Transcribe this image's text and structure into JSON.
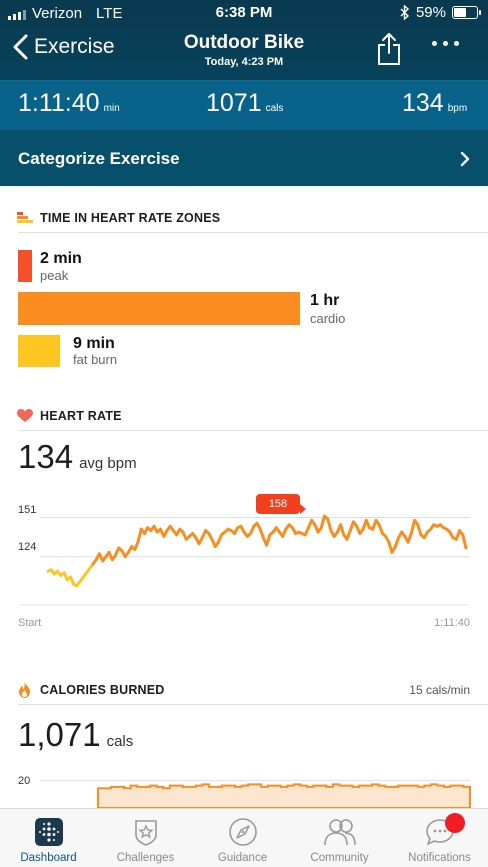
{
  "status_bar": {
    "carrier": "Verizon",
    "network": "LTE",
    "time": "6:38 PM",
    "battery": "59%",
    "battery_level": 0.59
  },
  "nav": {
    "back_label": "Exercise",
    "title": "Outdoor Bike",
    "subtitle": "Today, 4:23 PM",
    "share_icon": "share-icon",
    "more_icon": "more-icon"
  },
  "stats": {
    "duration": {
      "value": "1:11:40",
      "unit": "min"
    },
    "calories": {
      "value": "1071",
      "unit": "cals"
    },
    "heart_rate": {
      "value": "134",
      "unit": "bpm"
    }
  },
  "categorize": {
    "label": "Categorize Exercise"
  },
  "zones": {
    "title": "TIME IN HEART RATE ZONES",
    "items": [
      {
        "value": "2 min",
        "label": "peak",
        "minutes": 2,
        "color": "#f4502a"
      },
      {
        "value": "1 hr",
        "label": "cardio",
        "minutes": 60,
        "color": "#f98d20"
      },
      {
        "value": "9 min",
        "label": "fat burn",
        "minutes": 9,
        "color": "#fdc623"
      }
    ]
  },
  "heart_rate": {
    "title": "HEART RATE",
    "avg_value": "134",
    "avg_unit": "avg bpm",
    "y_ticks": [
      "151",
      "124"
    ],
    "peak_label": "158",
    "start_label": "Start",
    "end_label": "1:11:40"
  },
  "calories": {
    "title": "CALORIES BURNED",
    "rate": "15 cals/min",
    "total_value": "1,071",
    "total_unit": "cals",
    "y_tick": "20"
  },
  "tabs": [
    {
      "label": "Dashboard",
      "icon": "dashboard-icon",
      "active": true
    },
    {
      "label": "Challenges",
      "icon": "challenges-icon",
      "active": false
    },
    {
      "label": "Guidance",
      "icon": "guidance-icon",
      "active": false
    },
    {
      "label": "Community",
      "icon": "community-icon",
      "active": false
    },
    {
      "label": "Notifications",
      "icon": "notifications-icon",
      "active": false
    }
  ],
  "chart_data": [
    {
      "type": "line",
      "ylabel": "",
      "xlabel": "",
      "yticks": [
        124,
        151
      ],
      "ylim": [
        90,
        170
      ],
      "x_range": [
        "Start",
        "1:11:40"
      ],
      "peak": 158,
      "series": [
        {
          "values": [
            114,
            115,
            112,
            114,
            111,
            113,
            108,
            110,
            105,
            104,
            107,
            110,
            113,
            116,
            119,
            122,
            126,
            121,
            124,
            127,
            122,
            125,
            130,
            128,
            124,
            127,
            131,
            129,
            134,
            143,
            140,
            144,
            142,
            145,
            141,
            143,
            138,
            142,
            145,
            142,
            139,
            143,
            141,
            136,
            138,
            140,
            137,
            133,
            137,
            142,
            140,
            136,
            131,
            134,
            139,
            141,
            143,
            142,
            140,
            144,
            145,
            141,
            138,
            140,
            145,
            147,
            143,
            137,
            132,
            139,
            141,
            144,
            141,
            138,
            143,
            146,
            144,
            140,
            141,
            140,
            139,
            144,
            149,
            146,
            141,
            144,
            152,
            150,
            142,
            138,
            141,
            146,
            139,
            136,
            142,
            148,
            145,
            140,
            143,
            149,
            144,
            143,
            149,
            146,
            140,
            138,
            134,
            127,
            131,
            137,
            141,
            138,
            134,
            140,
            149,
            146,
            139,
            137,
            141,
            143,
            146,
            145,
            146,
            144,
            143,
            141,
            137,
            136,
            142,
            139,
            130
          ]
        }
      ]
    },
    {
      "type": "area",
      "ylabel": "",
      "yticks": [
        20
      ],
      "ylim": [
        0,
        22
      ],
      "series": [
        {
          "values": [
            14,
            14,
            15,
            15,
            14,
            16,
            15,
            15,
            16,
            15,
            14,
            16,
            16,
            15,
            15,
            16,
            17,
            15,
            15,
            16,
            16,
            15,
            16,
            17,
            17,
            15,
            16,
            16,
            15,
            16,
            17,
            16,
            15,
            16,
            16,
            15,
            17,
            16,
            16,
            15,
            16,
            16,
            17,
            16,
            15,
            15,
            16,
            16,
            16,
            15,
            16,
            17,
            16,
            15,
            16,
            16,
            15
          ]
        }
      ]
    }
  ]
}
